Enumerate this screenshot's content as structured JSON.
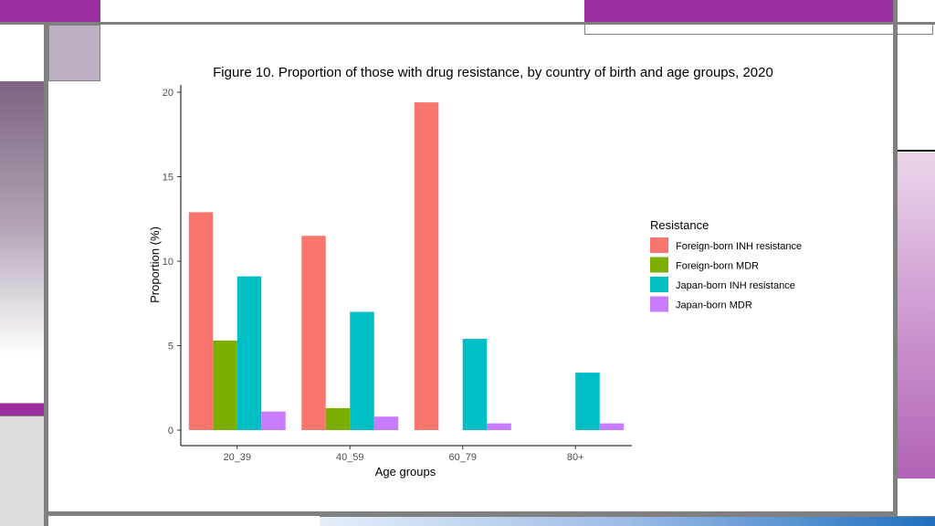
{
  "chart_data": {
    "type": "bar",
    "title": "Figure 10. Proportion of those with drug resistance, by country of birth and age groups, 2020",
    "xlabel": "Age groups",
    "ylabel": "Proportion (%)",
    "categories": [
      "20_39",
      "40_59",
      "60_79",
      "80+"
    ],
    "ylim": [
      0,
      20
    ],
    "yticks": [
      0,
      5,
      10,
      15,
      20
    ],
    "grid": false,
    "legend": {
      "title": "Resistance",
      "position": "right"
    },
    "series": [
      {
        "name": "Foreign-born INH resistance",
        "color": "#F8766D",
        "values": [
          12.9,
          11.5,
          19.4,
          null
        ]
      },
      {
        "name": "Foreign-born MDR",
        "color": "#7CAE00",
        "values": [
          5.3,
          1.3,
          null,
          null
        ]
      },
      {
        "name": "Japan-born INH resistance",
        "color": "#00BFC4",
        "values": [
          9.1,
          7.0,
          5.4,
          3.4
        ]
      },
      {
        "name": "Japan-born MDR",
        "color": "#C77CFF",
        "values": [
          1.1,
          0.8,
          0.4,
          0.4
        ]
      }
    ]
  },
  "decor_colors": {
    "accent_purple": "#9b2d9e",
    "frame_gray": "#808080",
    "mauve": "#bdb0c4",
    "pink_gradient_start": "#e8d0e8",
    "pink_gradient_end": "#b063b5",
    "blue_gradient_end": "#1f6fbf"
  }
}
